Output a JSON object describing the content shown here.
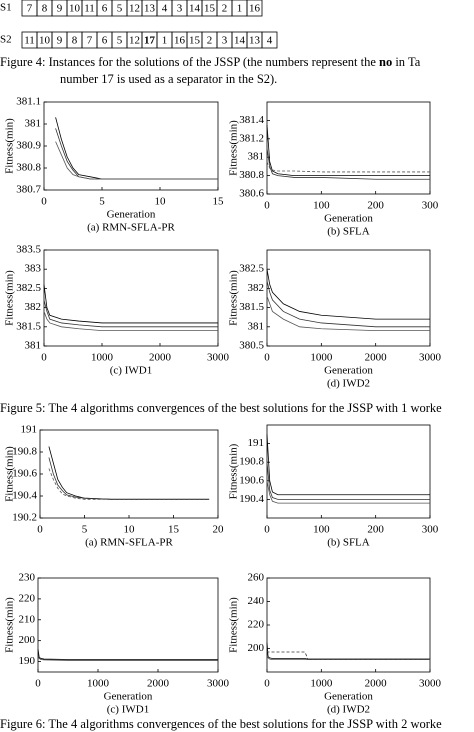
{
  "sequences": [
    {
      "label": "S1",
      "values": [
        7,
        8,
        9,
        10,
        11,
        6,
        5,
        12,
        13,
        4,
        3,
        14,
        15,
        2,
        1,
        16
      ]
    },
    {
      "label": "S2",
      "values": [
        11,
        10,
        9,
        8,
        7,
        6,
        5,
        12,
        17,
        1,
        16,
        15,
        2,
        3,
        14,
        13,
        4
      ],
      "bold_cells": [
        8
      ]
    }
  ],
  "figure4_caption": {
    "line1_start": "Figure 4: Instances for the solutions of the JSSP (the numbers represent the ",
    "line1_bold": "no",
    "line1_end": " in Ta",
    "line2": "number 17 is used as a separator in the S2)."
  },
  "figure5_caption": "Figure 5: The 4 algorithms convergences of the best solutions for the JSSP with 1 worke",
  "figure6_caption": "Figure 6: The 4 algorithms convergences of the best solutions for the JSSP with 2 worke",
  "chart_data": [
    {
      "type": "line",
      "ylabel": "Fitness(min)",
      "xlabel": "Generation",
      "caption": "(a) RMN-SFLA-PR",
      "xlim": [
        0,
        15
      ],
      "xticks": [
        0,
        5,
        10,
        15
      ],
      "ylim": [
        380.7,
        381.1
      ],
      "yticks": [
        380.7,
        380.8,
        380.9,
        381,
        381.1
      ],
      "x": [
        1,
        1.5,
        2,
        2.5,
        3,
        4,
        5,
        15
      ],
      "series": [
        {
          "color": "#000000",
          "values": [
            381.03,
            380.93,
            380.85,
            380.8,
            380.77,
            380.76,
            380.75,
            380.75
          ]
        },
        {
          "color": "#333333",
          "values": [
            380.98,
            380.9,
            380.83,
            380.79,
            380.76,
            380.75,
            380.75,
            380.75
          ]
        },
        {
          "color": "#555555",
          "values": [
            380.92,
            380.86,
            380.8,
            380.77,
            380.76,
            380.75,
            380.75,
            380.75
          ]
        }
      ]
    },
    {
      "type": "line",
      "ylabel": "Fitness(min)",
      "xlabel": "Generation",
      "caption": "(b) SFLA",
      "xlim": [
        0,
        300
      ],
      "xticks": [
        0,
        100,
        200,
        300
      ],
      "ylim": [
        380.6,
        381.6
      ],
      "yticks": [
        380.6,
        380.8,
        381,
        381.2,
        381.4
      ],
      "x": [
        0,
        5,
        10,
        20,
        50,
        100,
        200,
        300
      ],
      "series": [
        {
          "color": "#000000",
          "values": [
            381.35,
            380.95,
            380.85,
            380.82,
            380.8,
            380.8,
            380.8,
            380.8
          ]
        },
        {
          "color": "#333333",
          "values": [
            381.1,
            380.9,
            380.82,
            380.8,
            380.78,
            380.78,
            380.76,
            380.76
          ]
        },
        {
          "color": "#555555",
          "line_style": "dashed",
          "values": [
            380.95,
            380.88,
            380.86,
            380.85,
            380.85,
            380.84,
            380.84,
            380.84
          ]
        }
      ]
    },
    {
      "type": "line",
      "ylabel": "Fitness(min)",
      "caption": "(c) IWD1",
      "xlim": [
        0,
        3000
      ],
      "xticks": [
        0,
        1000,
        2000,
        3000
      ],
      "ylim": [
        381,
        383.5
      ],
      "yticks": [
        381,
        381.5,
        382,
        382.5,
        383,
        383.5
      ],
      "x": [
        0,
        50,
        100,
        300,
        600,
        1000,
        2000,
        3000
      ],
      "series": [
        {
          "color": "#000000",
          "values": [
            382.6,
            382.0,
            381.8,
            381.7,
            381.65,
            381.6,
            381.6,
            381.6
          ]
        },
        {
          "color": "#333333",
          "values": [
            382.2,
            381.9,
            381.7,
            381.6,
            381.55,
            381.5,
            381.5,
            381.5
          ]
        },
        {
          "color": "#555555",
          "values": [
            381.9,
            381.7,
            381.6,
            381.5,
            381.45,
            381.4,
            381.4,
            381.4
          ]
        }
      ]
    },
    {
      "type": "line",
      "ylabel": "Fitness(min)",
      "xlabel": "Generation",
      "caption": "(d) IWD2",
      "xlim": [
        0,
        3000
      ],
      "xticks": [
        0,
        1000,
        2000,
        3000
      ],
      "ylim": [
        380.5,
        383
      ],
      "yticks": [
        380.5,
        381,
        381.5,
        382,
        382.5
      ],
      "x": [
        0,
        50,
        100,
        300,
        600,
        1000,
        2000,
        3000
      ],
      "series": [
        {
          "color": "#000000",
          "values": [
            382.5,
            382.1,
            381.9,
            381.6,
            381.4,
            381.3,
            381.2,
            381.2
          ]
        },
        {
          "color": "#333333",
          "values": [
            382.2,
            381.9,
            381.7,
            381.4,
            381.2,
            381.1,
            381.0,
            381.0
          ]
        },
        {
          "color": "#555555",
          "values": [
            381.8,
            381.6,
            381.4,
            381.2,
            381.0,
            380.95,
            380.9,
            380.9
          ]
        }
      ]
    },
    {
      "type": "line",
      "ylabel": "Fitness(min)",
      "caption": "(a) RMN-SFLA-PR",
      "xlim": [
        0,
        20
      ],
      "xticks": [
        0,
        5,
        10,
        15,
        20
      ],
      "ylim": [
        190.2,
        191
      ],
      "yticks": [
        190.2,
        190.4,
        190.6,
        190.8,
        191
      ],
      "x": [
        1,
        1.5,
        2,
        2.5,
        3,
        4,
        5,
        8,
        19
      ],
      "series": [
        {
          "color": "#000000",
          "values": [
            190.85,
            190.7,
            190.55,
            190.48,
            190.43,
            190.4,
            190.38,
            190.37,
            190.37
          ]
        },
        {
          "color": "#333333",
          "values": [
            190.75,
            190.6,
            190.5,
            190.45,
            190.41,
            190.39,
            190.38,
            190.37,
            190.37
          ]
        },
        {
          "color": "#555555",
          "line_style": "dashed",
          "values": [
            190.65,
            190.55,
            190.47,
            190.42,
            190.4,
            190.38,
            190.37,
            190.37,
            190.37
          ]
        }
      ]
    },
    {
      "type": "line",
      "ylabel": "Fitness(min)",
      "caption": "(b) SFLA",
      "xlim": [
        0,
        300
      ],
      "xticks": [
        0,
        100,
        200,
        300
      ],
      "ylim": [
        190.2,
        191.2
      ],
      "yticks": [
        190.4,
        190.6,
        190.8,
        191
      ],
      "x": [
        0,
        5,
        10,
        20,
        50,
        100,
        200,
        300
      ],
      "series": [
        {
          "color": "#000000",
          "values": [
            191.1,
            190.6,
            190.48,
            190.45,
            190.45,
            190.45,
            190.45,
            190.45
          ]
        },
        {
          "color": "#333333",
          "values": [
            190.8,
            190.5,
            190.42,
            190.4,
            190.4,
            190.4,
            190.4,
            190.4
          ]
        },
        {
          "color": "#555555",
          "values": [
            190.6,
            190.45,
            190.38,
            190.36,
            190.36,
            190.36,
            190.36,
            190.36
          ]
        }
      ]
    },
    {
      "type": "line",
      "ylabel": "Fitness(min)",
      "xlabel": "Generation",
      "caption": "(c) IWD1",
      "xlim": [
        0,
        3000
      ],
      "xticks": [
        0,
        1000,
        2000,
        3000
      ],
      "ylim": [
        185,
        230
      ],
      "yticks": [
        190,
        200,
        210,
        220,
        230
      ],
      "x": [
        0,
        20,
        50,
        100,
        500,
        1000,
        2000,
        3000
      ],
      "series": [
        {
          "color": "#000000",
          "values": [
            196,
            192,
            191.5,
            191.2,
            191,
            191,
            191,
            191
          ]
        },
        {
          "color": "#333333",
          "values": [
            193,
            191.5,
            191,
            190.8,
            190.6,
            190.6,
            190.6,
            190.6
          ]
        }
      ]
    },
    {
      "type": "line",
      "ylabel": "Fitness(min)",
      "xlabel": "Generation",
      "caption": "(d) IWD2",
      "xlim": [
        0,
        3000
      ],
      "xticks": [
        0,
        1000,
        2000,
        3000
      ],
      "ylim": [
        180,
        260
      ],
      "yticks": [
        200,
        220,
        240,
        260
      ],
      "x": [
        0,
        20,
        50,
        100,
        700,
        750,
        2000,
        3000
      ],
      "series": [
        {
          "color": "#000000",
          "values": [
            205,
            193,
            192,
            191.5,
            191.5,
            191,
            191,
            191
          ]
        },
        {
          "color": "#333333",
          "line_style": "dashed",
          "values": [
            198,
            197,
            197,
            197,
            197,
            191,
            190.8,
            190.8
          ]
        },
        {
          "color": "#555555",
          "values": [
            194,
            192,
            191,
            190.5,
            190.5,
            190.5,
            190.5,
            190.5
          ]
        }
      ]
    }
  ]
}
